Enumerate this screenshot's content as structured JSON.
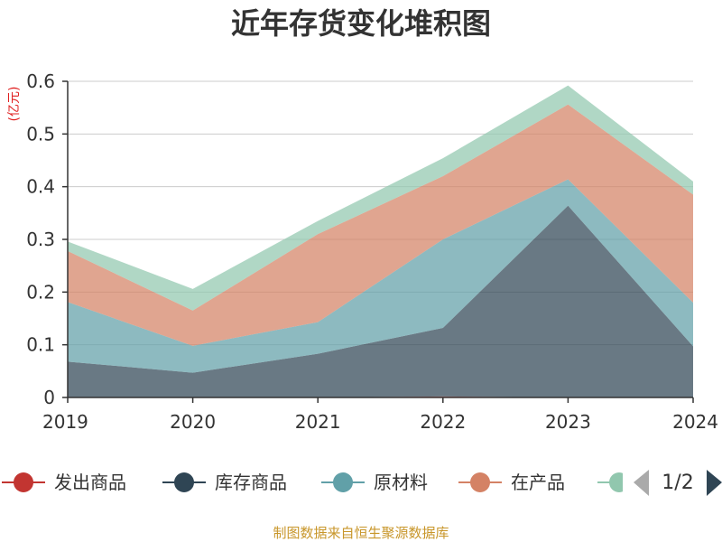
{
  "chart_data": {
    "type": "area",
    "stacked": true,
    "title": "近年存货变化堆积图",
    "unit_label": "(亿元)",
    "categories": [
      "2019",
      "2020",
      "2021",
      "2022",
      "2023",
      "2024"
    ],
    "ylim": [
      0,
      0.6
    ],
    "yticks": [
      "0",
      "0.1",
      "0.2",
      "0.3",
      "0.4",
      "0.5",
      "0.6"
    ],
    "grid": true,
    "series": [
      {
        "name": "发出商品",
        "color": "#c23531",
        "values": [
          0,
          0,
          0,
          0.002,
          0,
          0
        ]
      },
      {
        "name": "库存商品",
        "color": "#2f4554",
        "values": [
          0.068,
          0.047,
          0.083,
          0.13,
          0.364,
          0.097
        ]
      },
      {
        "name": "原材料",
        "color": "#61a0a8",
        "values": [
          0.113,
          0.051,
          0.06,
          0.168,
          0.05,
          0.083
        ]
      },
      {
        "name": "在产品",
        "color": "#d48265",
        "values": [
          0.097,
          0.067,
          0.167,
          0.12,
          0.142,
          0.205
        ]
      },
      {
        "name": "",
        "color": "#91c7ae",
        "values": [
          0.018,
          0.041,
          0.025,
          0.034,
          0.036,
          0.025
        ]
      }
    ],
    "legend": {
      "position": "bottom",
      "page": "1/2"
    },
    "footer": "制图数据来自恒生聚源数据库"
  }
}
